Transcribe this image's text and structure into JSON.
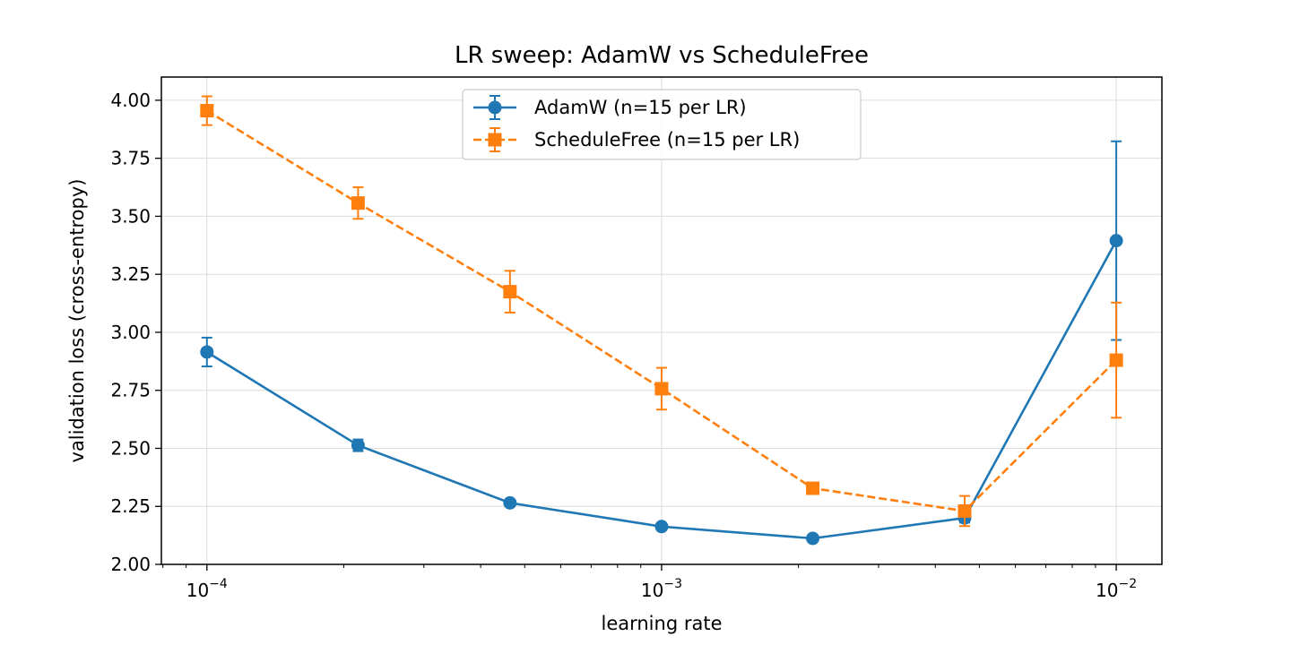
{
  "chart_data": {
    "type": "line",
    "title": "LR sweep: AdamW vs ScheduleFree",
    "xlabel": "learning rate",
    "ylabel": "validation loss (cross-entropy)",
    "xscale": "log",
    "xlim": [
      7.94e-05,
      0.0126
    ],
    "ylim": [
      2.0,
      4.1
    ],
    "x_ticks": [
      {
        "value": 0.0001,
        "base": "10",
        "exp": "−4"
      },
      {
        "value": 0.001,
        "base": "10",
        "exp": "−3"
      },
      {
        "value": 0.01,
        "base": "10",
        "exp": "−2"
      }
    ],
    "y_ticks": [
      "2.00",
      "2.25",
      "2.50",
      "2.75",
      "3.00",
      "3.25",
      "3.50",
      "3.75",
      "4.00"
    ],
    "grid": true,
    "legend_position": "top-center",
    "x": [
      0.0001,
      0.000215,
      0.000464,
      0.001,
      0.00215,
      0.00464,
      0.01
    ],
    "series": [
      {
        "name": "AdamW (n=15 per LR)",
        "color": "#1f77b4",
        "marker": "circle",
        "linestyle": "solid",
        "values": [
          2.915,
          2.513,
          2.265,
          2.163,
          2.112,
          2.2,
          3.395
        ],
        "errors": [
          0.062,
          0.025,
          0.012,
          0.01,
          0.008,
          0.02,
          0.428
        ]
      },
      {
        "name": "ScheduleFree (n=15 per LR)",
        "color": "#ff7f0e",
        "marker": "square",
        "linestyle": "dashed",
        "values": [
          3.955,
          3.557,
          3.175,
          2.757,
          2.328,
          2.23,
          2.88
        ],
        "errors": [
          0.062,
          0.068,
          0.09,
          0.09,
          0.02,
          0.065,
          0.248
        ]
      }
    ]
  }
}
